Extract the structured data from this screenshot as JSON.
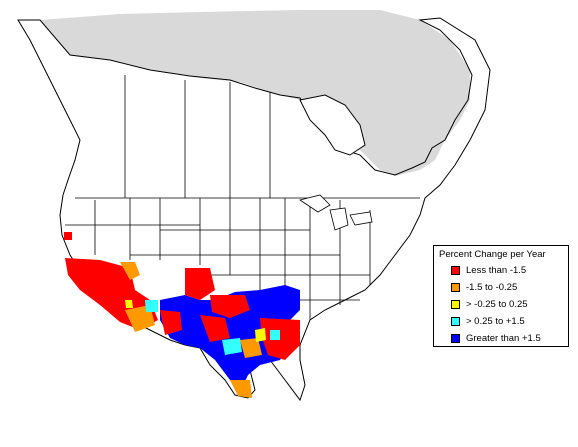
{
  "legend": {
    "title": "Percent Change per Year",
    "items": [
      {
        "label": "Less than -1.5",
        "color": "#ff0000"
      },
      {
        "label": "-1.5 to -0.25",
        "color": "#ff9900"
      },
      {
        "label": "> -0.25 to 0.25",
        "color": "#ffff00"
      },
      {
        "label": "> 0.25 to +1.5",
        "color": "#33ffff"
      },
      {
        "label": "Greater than +1.5",
        "color": "#0000ff"
      }
    ]
  },
  "colors": {
    "range_shade": "#d9d9d9",
    "outline": "#000000",
    "background": "#ffffff"
  }
}
